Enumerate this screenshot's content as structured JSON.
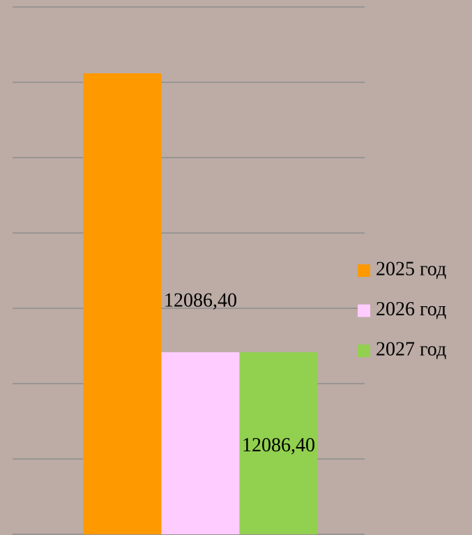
{
  "chart_data": {
    "type": "bar",
    "categories": [
      null
    ],
    "series": [
      {
        "name": "2025 год",
        "color": "#ff9900",
        "values": [
          30600
        ]
      },
      {
        "name": "2026 год",
        "color": "#ffccff",
        "values": [
          12086.4
        ],
        "value_labels": [
          "12086,40"
        ]
      },
      {
        "name": "2027 год",
        "color": "#92d050",
        "values": [
          12086.4
        ],
        "value_labels": [
          "12086,40"
        ]
      }
    ],
    "ylim": [
      0,
      35000
    ],
    "yticks": [
      0,
      5000,
      10000,
      15000,
      20000,
      25000,
      30000,
      35000
    ],
    "grid": true,
    "legend": "right"
  }
}
